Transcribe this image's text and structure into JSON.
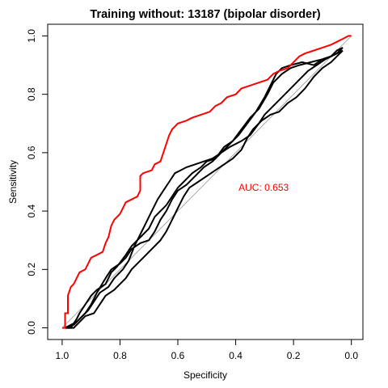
{
  "chart_data": {
    "type": "line",
    "title": "Training without: 13187 (bipolar disorder)",
    "xlabel": "Specificity",
    "ylabel": "Sensitivity",
    "xlim": [
      1.05,
      -0.04
    ],
    "ylim": [
      -0.04,
      1.04
    ],
    "x_reversed": true,
    "xticks": [
      "1.0",
      "0.8",
      "0.6",
      "0.4",
      "0.2",
      "0.0"
    ],
    "xtick_values": [
      1.0,
      0.8,
      0.6,
      0.4,
      0.2,
      0.0
    ],
    "yticks": [
      "0.0",
      "0.2",
      "0.4",
      "0.6",
      "0.8",
      "1.0"
    ],
    "ytick_values": [
      0.0,
      0.2,
      0.4,
      0.6,
      0.8,
      1.0
    ],
    "diagonal": {
      "color": "#a9a9a9",
      "from": [
        1.0,
        0.0
      ],
      "to": [
        0.0,
        1.0
      ]
    },
    "annotation": {
      "text": "AUC: 0.653",
      "x": 0.39,
      "y": 0.48,
      "color": "#ff0000"
    },
    "series": [
      {
        "color": "#ff0000",
        "points": [
          [
            1.0,
            0.0
          ],
          [
            0.99,
            0.0
          ],
          [
            0.99,
            0.05
          ],
          [
            0.98,
            0.05
          ],
          [
            0.98,
            0.11
          ],
          [
            0.97,
            0.14
          ],
          [
            0.96,
            0.15
          ],
          [
            0.95,
            0.17
          ],
          [
            0.94,
            0.19
          ],
          [
            0.92,
            0.2
          ],
          [
            0.91,
            0.22
          ],
          [
            0.9,
            0.24
          ],
          [
            0.88,
            0.25
          ],
          [
            0.86,
            0.26
          ],
          [
            0.85,
            0.29
          ],
          [
            0.84,
            0.31
          ],
          [
            0.83,
            0.35
          ],
          [
            0.82,
            0.37
          ],
          [
            0.8,
            0.39
          ],
          [
            0.79,
            0.41
          ],
          [
            0.78,
            0.43
          ],
          [
            0.76,
            0.44
          ],
          [
            0.74,
            0.45
          ],
          [
            0.73,
            0.47
          ],
          [
            0.73,
            0.52
          ],
          [
            0.72,
            0.53
          ],
          [
            0.69,
            0.54
          ],
          [
            0.68,
            0.56
          ],
          [
            0.66,
            0.57
          ],
          [
            0.65,
            0.6
          ],
          [
            0.64,
            0.63
          ],
          [
            0.63,
            0.66
          ],
          [
            0.62,
            0.68
          ],
          [
            0.61,
            0.69
          ],
          [
            0.6,
            0.7
          ],
          [
            0.57,
            0.71
          ],
          [
            0.55,
            0.72
          ],
          [
            0.52,
            0.73
          ],
          [
            0.49,
            0.74
          ],
          [
            0.47,
            0.76
          ],
          [
            0.45,
            0.77
          ],
          [
            0.43,
            0.79
          ],
          [
            0.4,
            0.8
          ],
          [
            0.38,
            0.82
          ],
          [
            0.35,
            0.83
          ],
          [
            0.32,
            0.84
          ],
          [
            0.29,
            0.85
          ],
          [
            0.27,
            0.87
          ],
          [
            0.25,
            0.88
          ],
          [
            0.22,
            0.89
          ],
          [
            0.2,
            0.91
          ],
          [
            0.18,
            0.93
          ],
          [
            0.16,
            0.94
          ],
          [
            0.13,
            0.95
          ],
          [
            0.1,
            0.96
          ],
          [
            0.07,
            0.97
          ],
          [
            0.05,
            0.98
          ],
          [
            0.03,
            0.99
          ],
          [
            0.01,
            1.0
          ],
          [
            0.0,
            1.0
          ]
        ]
      },
      {
        "color": "#000000",
        "points": [
          [
            0.99,
            0.0
          ],
          [
            0.97,
            0.0
          ],
          [
            0.95,
            0.03
          ],
          [
            0.94,
            0.05
          ],
          [
            0.92,
            0.08
          ],
          [
            0.9,
            0.11
          ],
          [
            0.88,
            0.13
          ],
          [
            0.85,
            0.15
          ],
          [
            0.83,
            0.19
          ],
          [
            0.81,
            0.21
          ],
          [
            0.78,
            0.25
          ],
          [
            0.76,
            0.28
          ],
          [
            0.74,
            0.3
          ],
          [
            0.72,
            0.32
          ],
          [
            0.7,
            0.34
          ],
          [
            0.68,
            0.38
          ],
          [
            0.66,
            0.4
          ],
          [
            0.64,
            0.42
          ],
          [
            0.62,
            0.45
          ],
          [
            0.6,
            0.48
          ],
          [
            0.58,
            0.5
          ],
          [
            0.55,
            0.53
          ],
          [
            0.52,
            0.55
          ],
          [
            0.5,
            0.57
          ],
          [
            0.47,
            0.58
          ],
          [
            0.44,
            0.62
          ],
          [
            0.41,
            0.64
          ],
          [
            0.38,
            0.68
          ],
          [
            0.35,
            0.72
          ],
          [
            0.32,
            0.75
          ],
          [
            0.29,
            0.8
          ],
          [
            0.27,
            0.84
          ],
          [
            0.24,
            0.87
          ],
          [
            0.21,
            0.89
          ],
          [
            0.18,
            0.9
          ],
          [
            0.14,
            0.91
          ],
          [
            0.1,
            0.92
          ],
          [
            0.07,
            0.93
          ],
          [
            0.05,
            0.95
          ],
          [
            0.03,
            0.96
          ]
        ]
      },
      {
        "color": "#000000",
        "points": [
          [
            0.99,
            0.0
          ],
          [
            0.96,
            0.01
          ],
          [
            0.94,
            0.03
          ],
          [
            0.92,
            0.05
          ],
          [
            0.9,
            0.08
          ],
          [
            0.88,
            0.12
          ],
          [
            0.85,
            0.17
          ],
          [
            0.83,
            0.2
          ],
          [
            0.8,
            0.22
          ],
          [
            0.78,
            0.24
          ],
          [
            0.76,
            0.27
          ],
          [
            0.73,
            0.29
          ],
          [
            0.7,
            0.3
          ],
          [
            0.68,
            0.33
          ],
          [
            0.66,
            0.37
          ],
          [
            0.64,
            0.4
          ],
          [
            0.62,
            0.44
          ],
          [
            0.6,
            0.47
          ],
          [
            0.57,
            0.49
          ],
          [
            0.54,
            0.52
          ],
          [
            0.51,
            0.55
          ],
          [
            0.48,
            0.57
          ],
          [
            0.45,
            0.6
          ],
          [
            0.42,
            0.63
          ],
          [
            0.39,
            0.66
          ],
          [
            0.36,
            0.7
          ],
          [
            0.33,
            0.74
          ],
          [
            0.3,
            0.79
          ],
          [
            0.28,
            0.83
          ],
          [
            0.26,
            0.87
          ],
          [
            0.24,
            0.89
          ],
          [
            0.21,
            0.9
          ],
          [
            0.17,
            0.91
          ],
          [
            0.13,
            0.9
          ],
          [
            0.1,
            0.92
          ],
          [
            0.07,
            0.93
          ],
          [
            0.05,
            0.94
          ],
          [
            0.03,
            0.95
          ]
        ]
      },
      {
        "color": "#000000",
        "points": [
          [
            0.99,
            0.0
          ],
          [
            0.97,
            0.01
          ],
          [
            0.95,
            0.02
          ],
          [
            0.93,
            0.04
          ],
          [
            0.91,
            0.06
          ],
          [
            0.89,
            0.09
          ],
          [
            0.87,
            0.12
          ],
          [
            0.84,
            0.14
          ],
          [
            0.82,
            0.17
          ],
          [
            0.79,
            0.2
          ],
          [
            0.77,
            0.23
          ],
          [
            0.75,
            0.28
          ],
          [
            0.73,
            0.32
          ],
          [
            0.71,
            0.36
          ],
          [
            0.69,
            0.4
          ],
          [
            0.67,
            0.44
          ],
          [
            0.65,
            0.47
          ],
          [
            0.63,
            0.5
          ],
          [
            0.61,
            0.53
          ],
          [
            0.59,
            0.54
          ],
          [
            0.57,
            0.55
          ],
          [
            0.54,
            0.56
          ],
          [
            0.51,
            0.57
          ],
          [
            0.48,
            0.58
          ],
          [
            0.45,
            0.6
          ],
          [
            0.42,
            0.62
          ],
          [
            0.38,
            0.64
          ],
          [
            0.35,
            0.66
          ],
          [
            0.32,
            0.7
          ],
          [
            0.3,
            0.73
          ],
          [
            0.27,
            0.76
          ],
          [
            0.24,
            0.79
          ],
          [
            0.21,
            0.82
          ],
          [
            0.18,
            0.85
          ],
          [
            0.15,
            0.88
          ],
          [
            0.12,
            0.9
          ],
          [
            0.09,
            0.92
          ],
          [
            0.07,
            0.93
          ],
          [
            0.05,
            0.94
          ],
          [
            0.03,
            0.96
          ]
        ]
      },
      {
        "color": "#000000",
        "points": [
          [
            0.99,
            0.0
          ],
          [
            0.96,
            0.0
          ],
          [
            0.94,
            0.02
          ],
          [
            0.92,
            0.04
          ],
          [
            0.89,
            0.05
          ],
          [
            0.87,
            0.08
          ],
          [
            0.85,
            0.11
          ],
          [
            0.82,
            0.13
          ],
          [
            0.8,
            0.15
          ],
          [
            0.78,
            0.17
          ],
          [
            0.76,
            0.2
          ],
          [
            0.74,
            0.22
          ],
          [
            0.72,
            0.24
          ],
          [
            0.7,
            0.26
          ],
          [
            0.68,
            0.28
          ],
          [
            0.66,
            0.3
          ],
          [
            0.64,
            0.33
          ],
          [
            0.62,
            0.37
          ],
          [
            0.6,
            0.41
          ],
          [
            0.58,
            0.45
          ],
          [
            0.56,
            0.48
          ],
          [
            0.53,
            0.5
          ],
          [
            0.5,
            0.52
          ],
          [
            0.47,
            0.54
          ],
          [
            0.44,
            0.56
          ],
          [
            0.41,
            0.58
          ],
          [
            0.38,
            0.61
          ],
          [
            0.36,
            0.65
          ],
          [
            0.34,
            0.68
          ],
          [
            0.31,
            0.71
          ],
          [
            0.28,
            0.73
          ],
          [
            0.25,
            0.74
          ],
          [
            0.22,
            0.77
          ],
          [
            0.19,
            0.79
          ],
          [
            0.16,
            0.82
          ],
          [
            0.13,
            0.86
          ],
          [
            0.1,
            0.89
          ],
          [
            0.07,
            0.91
          ],
          [
            0.05,
            0.93
          ],
          [
            0.03,
            0.95
          ]
        ]
      }
    ]
  }
}
